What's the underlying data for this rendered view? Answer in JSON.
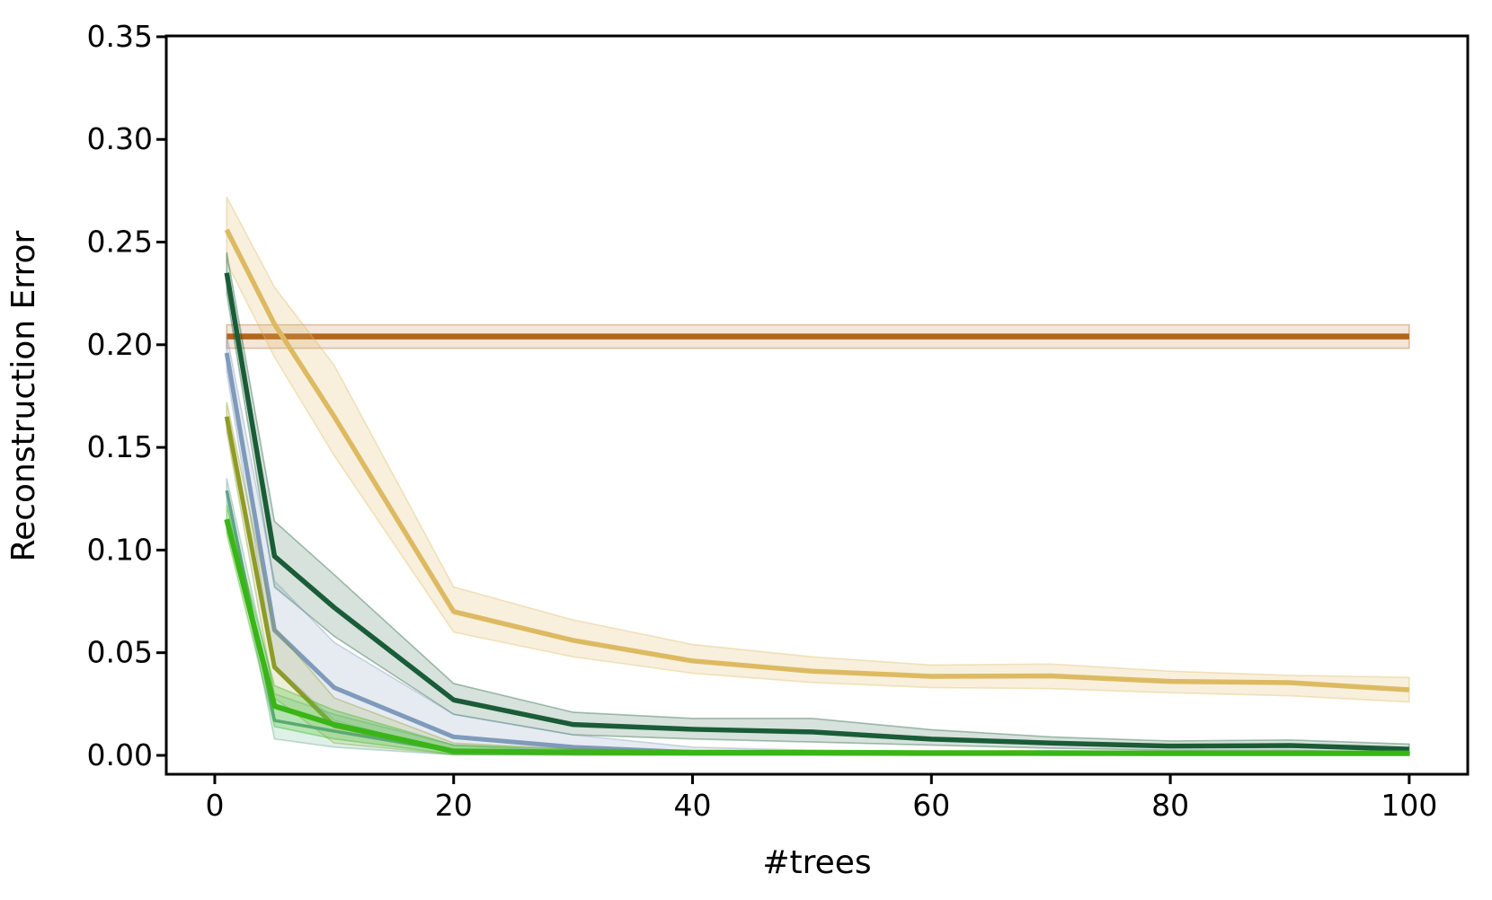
{
  "figure": {
    "background": "#ffffff",
    "axis_color": "#000000"
  },
  "chart_data": {
    "type": "line",
    "title": "",
    "xlabel": "#trees",
    "ylabel": "Reconstruction Error",
    "xlim": [
      -4.06,
      104.9
    ],
    "ylim": [
      -0.0092,
      0.3504
    ],
    "grid": false,
    "legend": "none",
    "xticks": [
      0,
      20,
      40,
      60,
      80,
      100
    ],
    "xtick_labels": [
      "0",
      "20",
      "40",
      "60",
      "80",
      "100"
    ],
    "yticks": [
      0.0,
      0.05,
      0.1,
      0.15,
      0.2,
      0.25,
      0.3,
      0.35
    ],
    "ytick_labels": [
      "0.00",
      "0.05",
      "0.10",
      "0.15",
      "0.20",
      "0.25",
      "0.30",
      "0.35"
    ],
    "x": [
      1,
      5,
      10,
      20,
      30,
      40,
      50,
      60,
      70,
      80,
      90,
      100
    ],
    "series": [
      {
        "name": "brown-horizontal-baseline",
        "color": "#b5641a",
        "band_fill": "#b5641a",
        "band_opacity": 0.16,
        "line_width": 6.5,
        "values": [
          0.204,
          0.204,
          0.204,
          0.204,
          0.204,
          0.204,
          0.204,
          0.204,
          0.204,
          0.204,
          0.204,
          0.204
        ],
        "band_hi": [
          0.2097,
          0.2097,
          0.2097,
          0.2097,
          0.2097,
          0.2097,
          0.2097,
          0.2097,
          0.2097,
          0.2097,
          0.2097,
          0.2097
        ],
        "band_lo": [
          0.1983,
          0.1983,
          0.1983,
          0.1983,
          0.1983,
          0.1983,
          0.1983,
          0.1983,
          0.1983,
          0.1983,
          0.1983,
          0.1983
        ]
      },
      {
        "name": "tan-gold-curve",
        "color": "#ddba62",
        "band_fill": "#ddba62",
        "band_opacity": 0.22,
        "line_width": 5.5,
        "values": [
          0.256,
          0.21,
          0.165,
          0.07,
          0.056,
          0.046,
          0.041,
          0.0385,
          0.0387,
          0.036,
          0.0354,
          0.0319
        ],
        "band_hi": [
          0.272,
          0.228,
          0.19,
          0.082,
          0.066,
          0.054,
          0.048,
          0.044,
          0.0445,
          0.041,
          0.039,
          0.038
        ],
        "band_lo": [
          0.24,
          0.194,
          0.146,
          0.06,
          0.048,
          0.04,
          0.0355,
          0.033,
          0.0325,
          0.0305,
          0.029,
          0.026
        ]
      },
      {
        "name": "dark-green-curve",
        "color": "#1a5c38",
        "band_fill": "#1a5c38",
        "band_opacity": 0.18,
        "line_width": 5.5,
        "values": [
          0.235,
          0.097,
          0.072,
          0.027,
          0.015,
          0.0127,
          0.0114,
          0.0079,
          0.006,
          0.0045,
          0.0048,
          0.003
        ],
        "band_hi": [
          0.245,
          0.114,
          0.088,
          0.035,
          0.021,
          0.018,
          0.018,
          0.0125,
          0.009,
          0.007,
          0.0075,
          0.0055
        ],
        "band_lo": [
          0.225,
          0.082,
          0.058,
          0.02,
          0.01,
          0.008,
          0.0065,
          0.005,
          0.0035,
          0.0025,
          0.0025,
          0.0012
        ]
      },
      {
        "name": "blue-gray-curve",
        "color": "#7f9aba",
        "band_fill": "#7f9aba",
        "band_opacity": 0.2,
        "line_width": 5,
        "values": [
          0.196,
          0.061,
          0.033,
          0.009,
          0.004,
          0.0015,
          0.001,
          0.001,
          0.0008,
          0.0008,
          0.0008,
          0.0008
        ],
        "band_hi": [
          0.205,
          0.085,
          0.055,
          0.02,
          0.01,
          0.004,
          0.0025,
          0.002,
          0.0018,
          0.0015,
          0.0015,
          0.0015
        ],
        "band_lo": [
          0.187,
          0.044,
          0.017,
          0.0015,
          0.0005,
          0.0002,
          0.0002,
          0.0002,
          0.0002,
          0.0002,
          0.0002,
          0.0002
        ]
      },
      {
        "name": "olive-curve",
        "color": "#8e9b27",
        "band_fill": "#8e9b27",
        "band_opacity": 0.16,
        "line_width": 5,
        "values": [
          0.165,
          0.043,
          0.0144,
          0.002,
          0.0012,
          0.001,
          0.001,
          0.0008,
          0.0008,
          0.0008,
          0.0008,
          0.0008
        ],
        "band_hi": [
          0.172,
          0.062,
          0.028,
          0.006,
          0.003,
          0.002,
          0.0018,
          0.0015,
          0.0015,
          0.0015,
          0.0015,
          0.0015
        ],
        "band_lo": [
          0.158,
          0.028,
          0.006,
          0.0004,
          0.0002,
          0.0002,
          0.0002,
          0.0002,
          0.0002,
          0.0002,
          0.0002,
          0.0002
        ]
      },
      {
        "name": "teal-sea-green-curve",
        "color": "#62a08e",
        "band_fill": "#62c08e",
        "band_opacity": 0.22,
        "line_width": 3.5,
        "values": [
          0.129,
          0.017,
          0.0118,
          0.002,
          0.001,
          0.0008,
          0.0008,
          0.0008,
          0.0006,
          0.0006,
          0.0006,
          0.0006
        ],
        "band_hi": [
          0.135,
          0.03,
          0.02,
          0.005,
          0.002,
          0.0015,
          0.0015,
          0.0012,
          0.0012,
          0.0012,
          0.0012,
          0.0012
        ],
        "band_lo": [
          0.123,
          0.008,
          0.004,
          0.0003,
          0.0002,
          0.0002,
          0.0002,
          0.0002,
          0.0002,
          0.0002,
          0.0002,
          0.0002
        ]
      },
      {
        "name": "bright-green-curve",
        "color": "#39b517",
        "band_fill": "#4cc22a",
        "band_opacity": 0.28,
        "line_width": 6,
        "values": [
          0.115,
          0.024,
          0.015,
          0.002,
          0.0015,
          0.0013,
          0.0013,
          0.0012,
          0.0012,
          0.001,
          0.001,
          0.001
        ],
        "band_hi": [
          0.122,
          0.034,
          0.022,
          0.005,
          0.003,
          0.0025,
          0.0025,
          0.002,
          0.002,
          0.002,
          0.002,
          0.002
        ],
        "band_lo": [
          0.108,
          0.014,
          0.008,
          0.0005,
          0.0003,
          0.0003,
          0.0003,
          0.0003,
          0.0003,
          0.0003,
          0.0003,
          0.0003
        ]
      }
    ]
  }
}
